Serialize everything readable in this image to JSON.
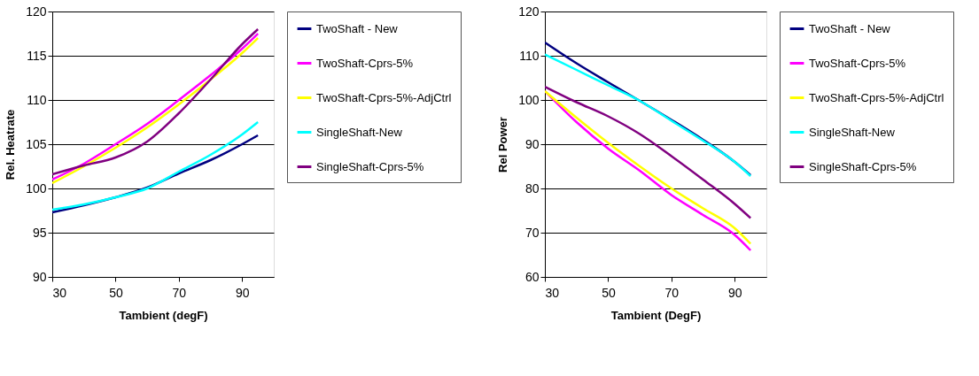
{
  "chart_data": [
    {
      "type": "line",
      "xlabel": "Tambient (degF)",
      "ylabel": "Rel. Heatrate",
      "x": [
        30,
        40,
        50,
        60,
        70,
        80,
        90,
        95
      ],
      "xlim": [
        30,
        100
      ],
      "xticks": [
        30,
        50,
        70,
        90
      ],
      "ylim": [
        90,
        120
      ],
      "yticks": [
        90,
        95,
        100,
        105,
        110,
        115,
        120
      ],
      "grid": "y",
      "legend": "right",
      "line_style": "solid",
      "marker": "none",
      "series": [
        {
          "name": "TwoShaft - New",
          "color": "#000080",
          "values": [
            97.3,
            98.1,
            99.0,
            100.1,
            101.7,
            103.2,
            105.0,
            106.0
          ]
        },
        {
          "name": "TwoShaft-Cprs-5%",
          "color": "#ff00ff",
          "values": [
            101.0,
            102.8,
            105.0,
            107.3,
            110.0,
            112.8,
            115.8,
            117.5
          ]
        },
        {
          "name": "TwoShaft-Cprs-5%-AdjCtrl",
          "color": "#ffff00",
          "values": [
            100.6,
            102.5,
            104.6,
            106.9,
            109.5,
            112.3,
            115.3,
            117.0
          ]
        },
        {
          "name": "SingleShaft-New",
          "color": "#00ffff",
          "values": [
            97.6,
            98.2,
            99.0,
            100.0,
            101.9,
            103.8,
            106.1,
            107.5
          ]
        },
        {
          "name": "SingleShaft-Cprs-5%",
          "color": "#800080",
          "values": [
            101.6,
            102.6,
            103.5,
            105.3,
            108.5,
            112.3,
            116.3,
            118.0
          ]
        }
      ]
    },
    {
      "type": "line",
      "xlabel": "Tambient (DegF)",
      "ylabel": "Rel Power",
      "x": [
        30,
        40,
        50,
        60,
        70,
        80,
        90,
        95
      ],
      "xlim": [
        30,
        100
      ],
      "xticks": [
        30,
        50,
        70,
        90
      ],
      "ylim": [
        60,
        120
      ],
      "yticks": [
        60,
        70,
        80,
        90,
        100,
        110,
        120
      ],
      "grid": "y",
      "legend": "right",
      "line_style": "solid",
      "marker": "none",
      "series": [
        {
          "name": "TwoShaft - New",
          "color": "#000080",
          "values": [
            113.0,
            108.3,
            104.0,
            99.8,
            95.5,
            91.0,
            86.0,
            83.0
          ]
        },
        {
          "name": "TwoShaft-Cprs-5%",
          "color": "#ff00ff",
          "values": [
            102.0,
            95.0,
            89.0,
            84.0,
            78.5,
            74.0,
            69.5,
            66.0
          ]
        },
        {
          "name": "TwoShaft-Cprs-5%-AdjCtrl",
          "color": "#ffff00",
          "values": [
            102.0,
            96.0,
            90.3,
            85.0,
            80.0,
            75.5,
            71.0,
            67.5
          ]
        },
        {
          "name": "SingleShaft-New",
          "color": "#00ffff",
          "values": [
            110.3,
            106.8,
            103.3,
            99.8,
            95.3,
            90.8,
            86.0,
            82.8
          ]
        },
        {
          "name": "SingleShaft-Cprs-5%",
          "color": "#800080",
          "values": [
            103.0,
            99.5,
            96.3,
            92.3,
            87.3,
            82.0,
            76.5,
            73.3
          ]
        }
      ]
    }
  ]
}
